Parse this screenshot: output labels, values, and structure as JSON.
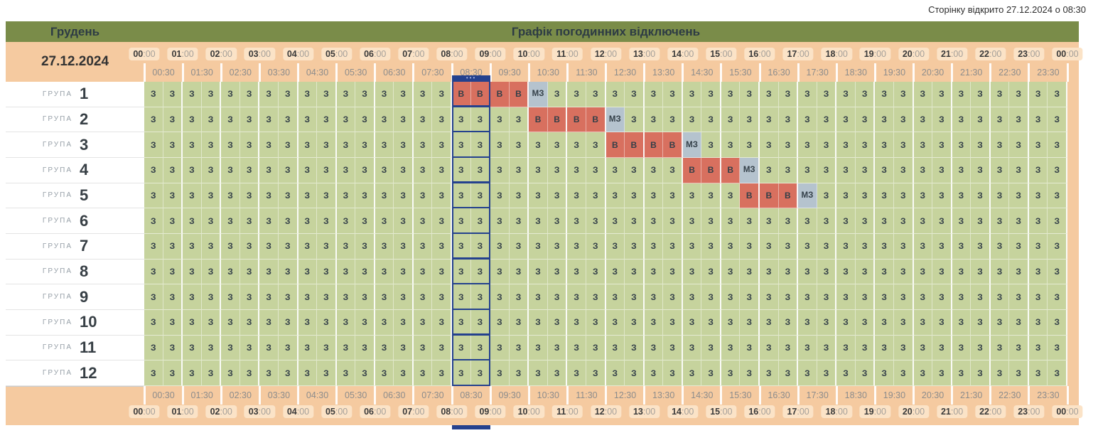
{
  "page": {
    "opened_text": "Сторінку відкрито 27.12.2024 о 08:30"
  },
  "title_bar": {
    "month": "Грудень",
    "title": "Графік погодинних відключень"
  },
  "header": {
    "date": "27.12.2024"
  },
  "timeline": {
    "hours": [
      "00",
      "01",
      "02",
      "03",
      "04",
      "05",
      "06",
      "07",
      "08",
      "09",
      "10",
      "11",
      "12",
      "13",
      "14",
      "15",
      "16",
      "17",
      "18",
      "19",
      "20",
      "21",
      "22",
      "23",
      "00"
    ],
    "hour_suffix": ":00",
    "half_hours": [
      "00:30",
      "01:30",
      "02:30",
      "03:30",
      "04:30",
      "05:30",
      "06:30",
      "07:30",
      "08:30",
      "09:30",
      "10:30",
      "11:30",
      "12:30",
      "13:30",
      "14:30",
      "15:30",
      "16:30",
      "17:30",
      "18:30",
      "19:30",
      "20:30",
      "21:30",
      "22:30",
      "23:30"
    ]
  },
  "marker": {
    "hour_index": 8,
    "start": "08:00",
    "end": "09:00",
    "dots": "•••"
  },
  "legend_map": {
    "3": "З",
    "B": "В",
    "M": "МЗ"
  },
  "groups": [
    {
      "label": "ГРУПА",
      "number": "1",
      "cells": "3333333333333333BBBBM333333333333333333333333333"
    },
    {
      "label": "ГРУПА",
      "number": "2",
      "cells": "33333333333333333333BBBBM33333333333333333333333"
    },
    {
      "label": "ГРУПА",
      "number": "3",
      "cells": "333333333333333333333333BBBBM3333333333333333333"
    },
    {
      "label": "ГРУПА",
      "number": "4",
      "cells": "3333333333333333333333333333BBBM3333333333333333"
    },
    {
      "label": "ГРУПА",
      "number": "5",
      "cells": "3333333333333333333333333333333BBBM3333333333333"
    },
    {
      "label": "ГРУПА",
      "number": "6",
      "cells": "333333333333333333333333333333333333333333333333"
    },
    {
      "label": "ГРУПА",
      "number": "7",
      "cells": "333333333333333333333333333333333333333333333333"
    },
    {
      "label": "ГРУПА",
      "number": "8",
      "cells": "333333333333333333333333333333333333333333333333"
    },
    {
      "label": "ГРУПА",
      "number": "9",
      "cells": "333333333333333333333333333333333333333333333333"
    },
    {
      "label": "ГРУПА",
      "number": "10",
      "cells": "333333333333333333333333333333333333333333333333"
    },
    {
      "label": "ГРУПА",
      "number": "11",
      "cells": "333333333333333333333333333333333333333333333333"
    },
    {
      "label": "ГРУПА",
      "number": "12",
      "cells": "333333333333333333333333333333333333333333333333"
    }
  ],
  "colors": {
    "green_bar": "#7a8c49",
    "tan": "#f5caa0",
    "chip": "#fbe3c7",
    "cell_on": "#c6d39d",
    "cell_off": "#d8705f",
    "cell_maybe": "#b5c3ce",
    "marker_navy": "#24418e"
  }
}
